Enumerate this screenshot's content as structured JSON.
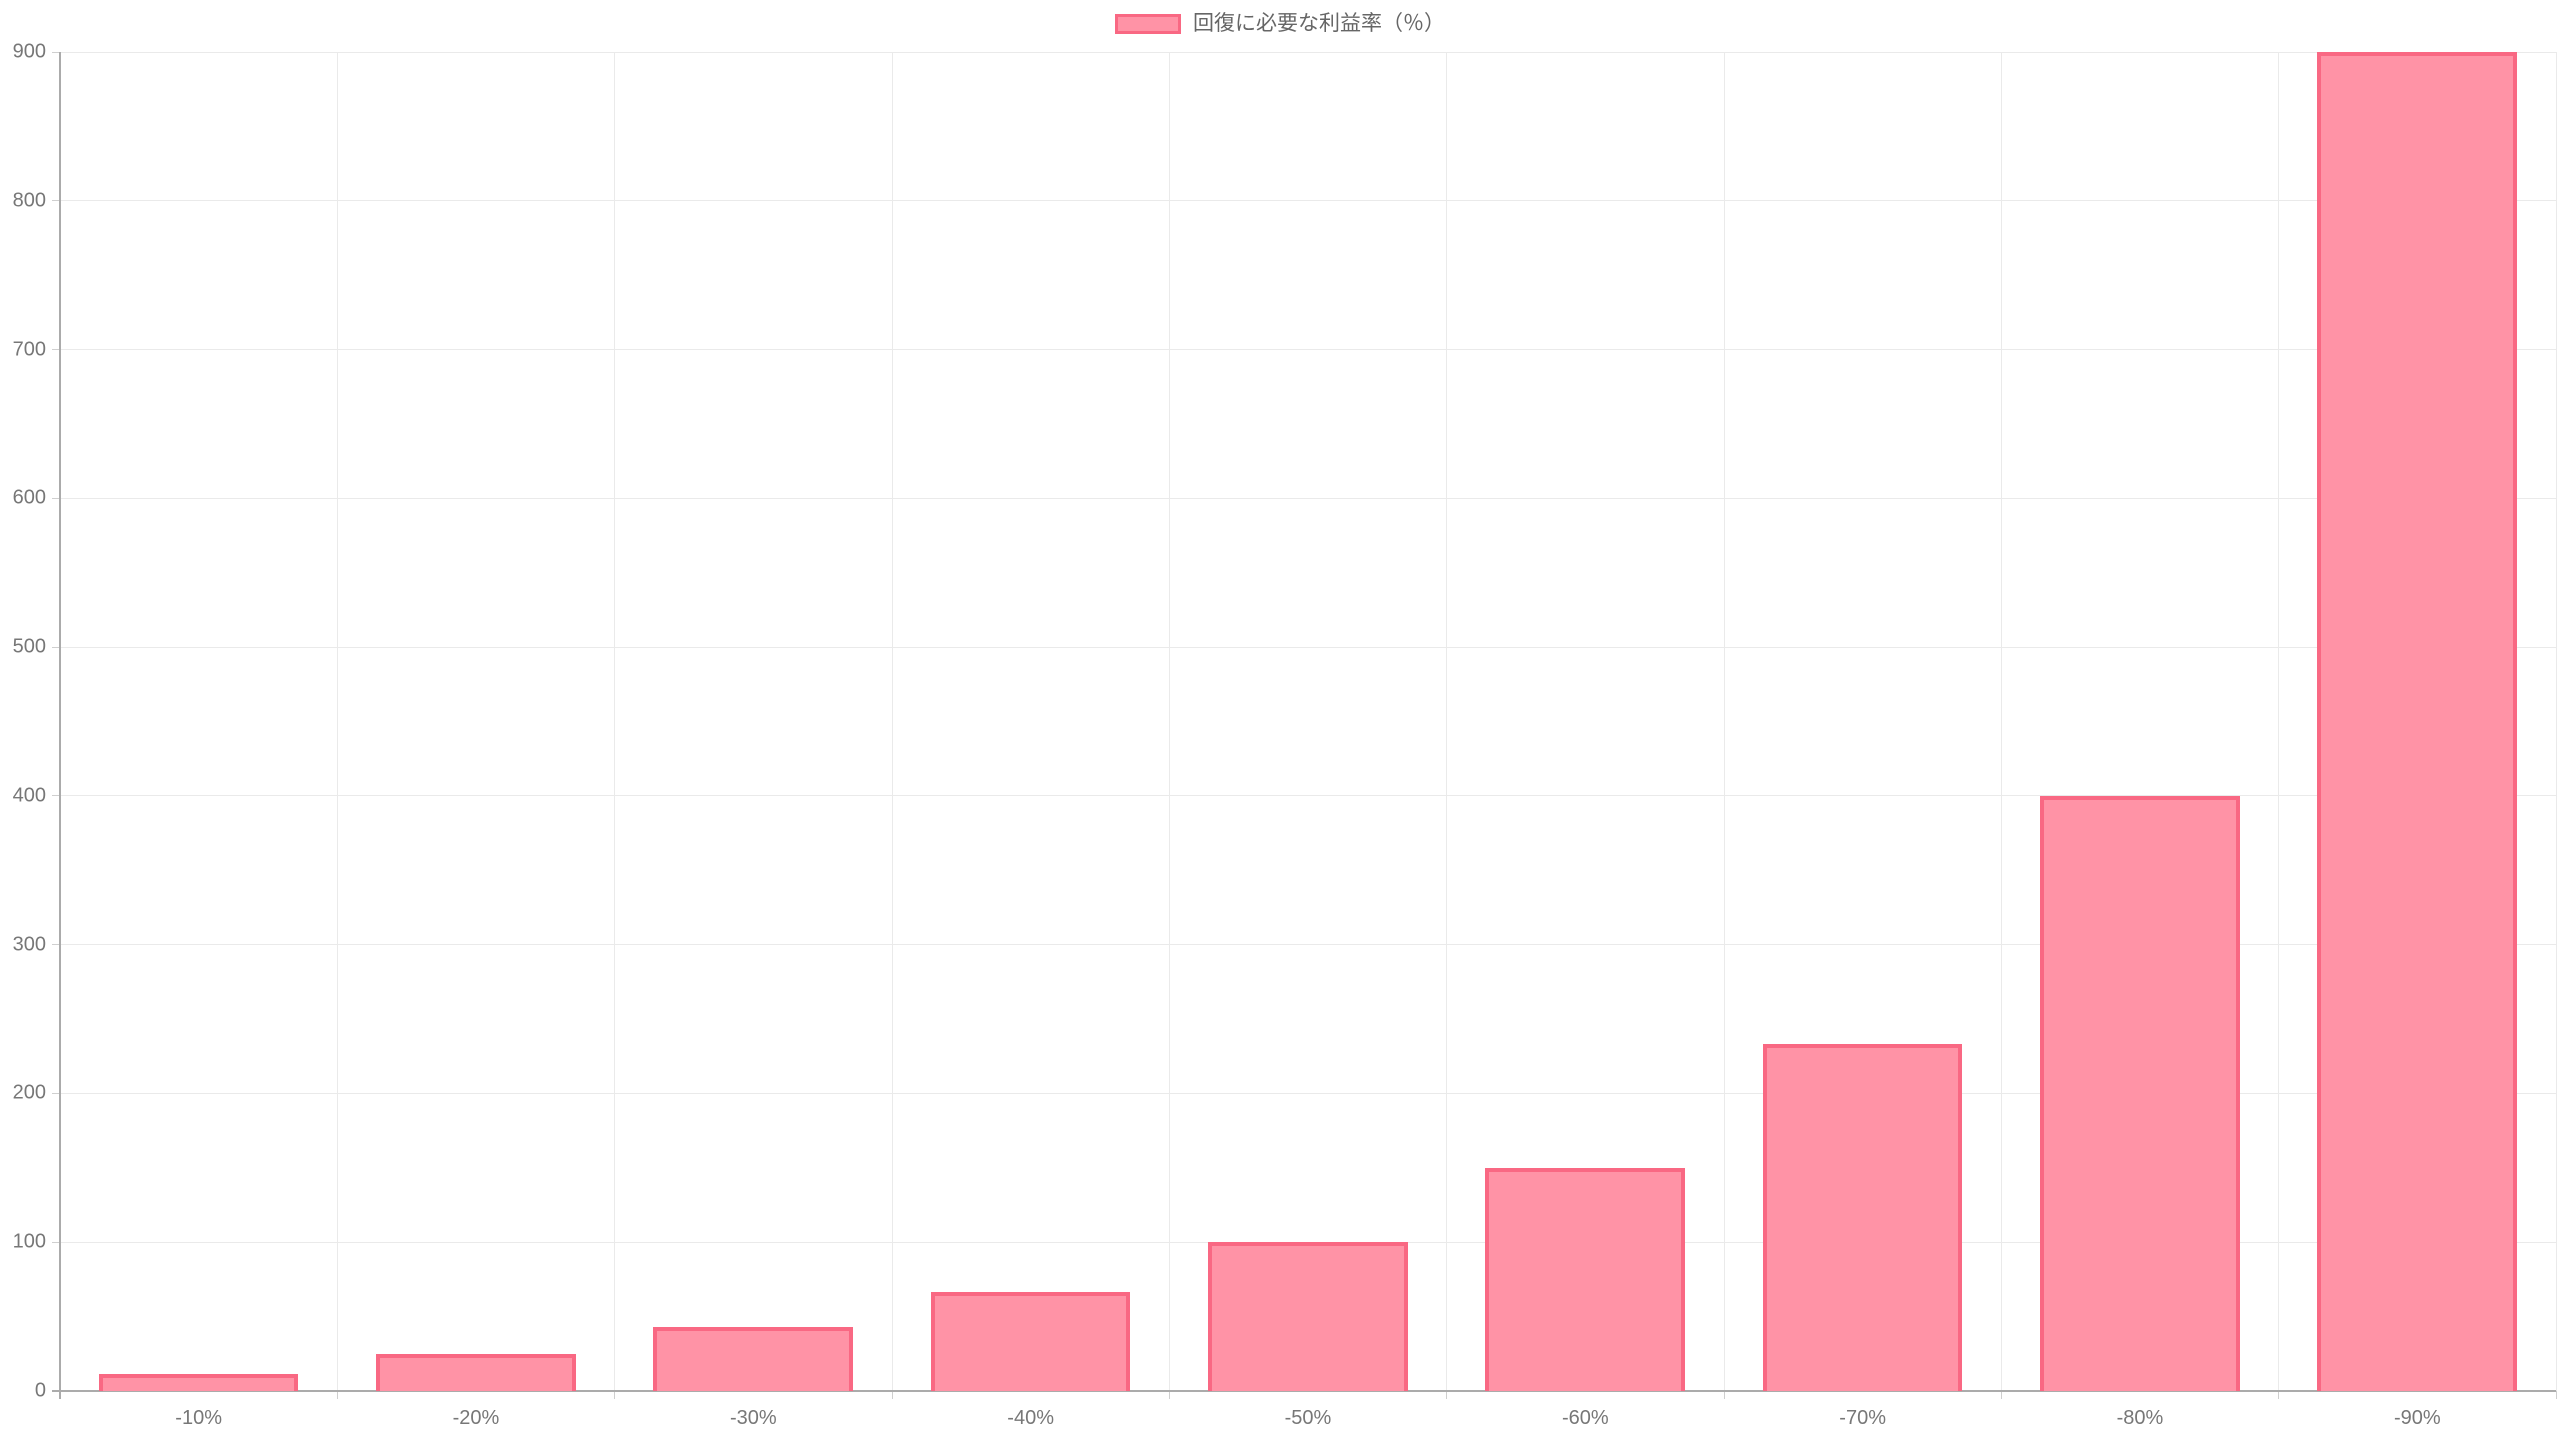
{
  "legend": {
    "label": "回復に必要な利益率（％）",
    "position": "top"
  },
  "colors": {
    "bar_fill": "#FF93A6",
    "bar_border": "#F96883",
    "grid": "#EAEAEA",
    "axis": "#ABABAB",
    "tick_mark": "#CFCFCF",
    "tick_text": "#777777",
    "legend_text": "#666666",
    "background": "#FFFFFF"
  },
  "chart_data": {
    "type": "bar",
    "title": "",
    "xlabel": "",
    "ylabel": "",
    "series_name": "回復に必要な利益率（％）",
    "categories": [
      "-10%",
      "-20%",
      "-30%",
      "-40%",
      "-50%",
      "-60%",
      "-70%",
      "-80%",
      "-90%"
    ],
    "values": [
      11.1,
      25,
      42.9,
      66.7,
      100,
      150,
      233.3,
      400,
      900
    ],
    "ylim": [
      0,
      900
    ],
    "ytick_step": 100,
    "yticks": [
      0,
      100,
      200,
      300,
      400,
      500,
      600,
      700,
      800,
      900
    ],
    "grid": true,
    "legend_position": "top",
    "bar_width_ratio": 0.72
  }
}
